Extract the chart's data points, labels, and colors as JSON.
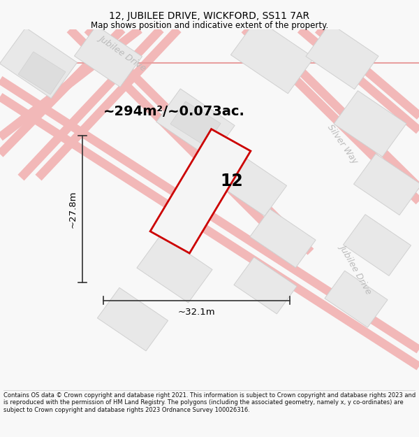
{
  "title": "12, JUBILEE DRIVE, WICKFORD, SS11 7AR",
  "subtitle": "Map shows position and indicative extent of the property.",
  "area_label": "~294m²/~0.073ac.",
  "property_number": "12",
  "width_label": "~32.1m",
  "height_label": "~27.8m",
  "footer": "Contains OS data © Crown copyright and database right 2021. This information is subject to Crown copyright and database rights 2023 and is reproduced with the permission of HM Land Registry. The polygons (including the associated geometry, namely x, y co-ordinates) are subject to Crown copyright and database rights 2023 Ordnance Survey 100026316.",
  "bg_color": "#f8f8f8",
  "map_bg": "#ffffff",
  "road_color": "#f2b8b8",
  "road_edge_color": "#e8a0a0",
  "road_label_color": "#bbbbbb",
  "building_fill": "#e8e8e8",
  "building_edge": "#d0d0d0",
  "property_fill": "#f5f5f5",
  "property_edge": "#cc0000",
  "dim_color": "#333333",
  "text_color": "#000000",
  "footer_color": "#111111"
}
